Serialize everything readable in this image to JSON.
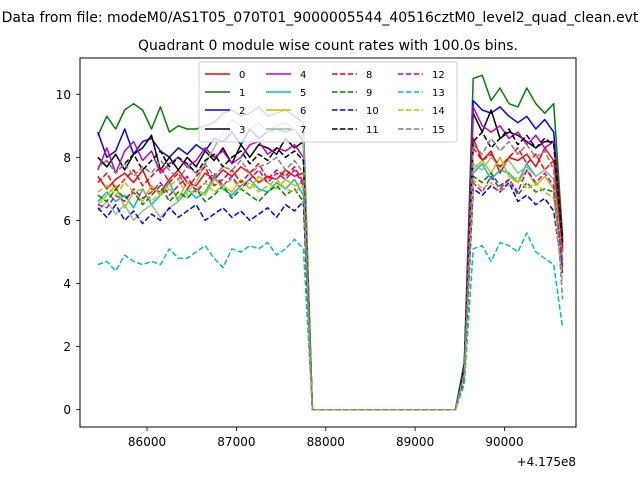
{
  "figure": {
    "suptitle": "Data from file: modeM0/AS1T05_070T01_9000005544_40516cztM0_level2_quad_clean.evt",
    "title": "Quadrant 0 module wise count rates with 100.0s bins.",
    "offset_text": "+4.175e8"
  },
  "chart_data": {
    "type": "line",
    "title": "Quadrant 0 module wise count rates with 100.0s bins.",
    "xlabel": "",
    "ylabel": "",
    "x_offset": 417500000,
    "xlim": [
      85250,
      90800
    ],
    "ylim": [
      -0.55,
      11.15
    ],
    "xticks": [
      86000,
      87000,
      88000,
      89000,
      90000
    ],
    "xtick_labels": [
      "86000",
      "87000",
      "88000",
      "89000",
      "90000"
    ],
    "yticks": [
      0,
      2,
      4,
      6,
      8,
      10
    ],
    "ytick_labels": [
      "0",
      "2",
      "4",
      "6",
      "8",
      "10"
    ],
    "grid": false,
    "legend": {
      "placement": "upper center",
      "columns": 4
    },
    "x": [
      85450,
      85550,
      85650,
      85750,
      85850,
      85950,
      86050,
      86150,
      86250,
      86350,
      86450,
      86550,
      86650,
      86750,
      86850,
      86950,
      87050,
      87150,
      87250,
      87350,
      87450,
      87550,
      87650,
      87750,
      87850,
      89450,
      89550,
      89650,
      89750,
      89850,
      89950,
      90050,
      90150,
      90250,
      90350,
      90450,
      90550,
      90650
    ],
    "series": [
      {
        "name": "0",
        "color": "#ff0000",
        "dash": "solid",
        "values": [
          7.4,
          7.0,
          7.3,
          7.5,
          7.2,
          7.6,
          7.0,
          6.9,
          7.3,
          7.6,
          7.2,
          7.1,
          7.5,
          7.3,
          7.6,
          7.4,
          7.7,
          7.5,
          7.2,
          7.4,
          7.3,
          7.6,
          7.4,
          7.5,
          0,
          0,
          1.2,
          8.6,
          7.9,
          8.2,
          7.5,
          8.0,
          7.9,
          8.1,
          7.7,
          8.3,
          7.9,
          5.0
        ]
      },
      {
        "name": "1",
        "color": "#008000",
        "dash": "solid",
        "values": [
          8.7,
          9.3,
          8.9,
          9.5,
          9.7,
          9.5,
          8.9,
          9.6,
          8.8,
          9.0,
          8.9,
          8.9,
          9.0,
          9.1,
          9.4,
          9.5,
          9.3,
          9.4,
          9.6,
          9.3,
          9.4,
          9.5,
          9.3,
          9.1,
          0,
          0,
          1.5,
          10.5,
          10.6,
          9.8,
          10.2,
          9.7,
          9.6,
          10.2,
          9.7,
          9.4,
          9.7,
          5.5
        ]
      },
      {
        "name": "2",
        "color": "#0000ff",
        "dash": "solid",
        "values": [
          8.8,
          8.0,
          8.2,
          8.9,
          8.1,
          8.5,
          8.6,
          8.2,
          8.0,
          8.3,
          8.1,
          8.4,
          8.2,
          8.6,
          8.5,
          8.8,
          8.4,
          8.9,
          8.6,
          8.8,
          8.9,
          8.8,
          8.9,
          8.5,
          0,
          0,
          1.4,
          9.8,
          9.5,
          9.4,
          9.6,
          9.3,
          9.1,
          9.3,
          8.9,
          9.2,
          8.8,
          5.2
        ]
      },
      {
        "name": "3",
        "color": "#000000",
        "dash": "solid",
        "values": [
          8.0,
          7.7,
          8.1,
          7.6,
          8.1,
          8.3,
          8.7,
          7.6,
          8.0,
          7.6,
          8.0,
          7.7,
          8.2,
          7.9,
          8.3,
          7.8,
          8.4,
          8.0,
          8.4,
          8.3,
          8.1,
          8.6,
          8.3,
          8.5,
          0,
          0,
          1.3,
          9.4,
          8.8,
          9.5,
          8.6,
          8.8,
          8.7,
          8.5,
          8.3,
          8.5,
          8.5,
          5.4
        ]
      },
      {
        "name": "4",
        "color": "#bf00bf",
        "dash": "solid",
        "values": [
          7.6,
          8.3,
          7.5,
          8.2,
          8.5,
          7.9,
          8.2,
          7.5,
          7.8,
          8.0,
          7.7,
          7.9,
          8.3,
          8.0,
          8.2,
          7.8,
          8.0,
          8.4,
          8.5,
          8.1,
          8.3,
          8.2,
          8.4,
          8.0,
          0,
          0,
          1.3,
          9.6,
          9.0,
          8.8,
          9.0,
          8.6,
          8.8,
          8.4,
          8.7,
          8.3,
          8.5,
          5.3
        ]
      },
      {
        "name": "5",
        "color": "#00bfbf",
        "dash": "solid",
        "values": [
          6.6,
          6.9,
          6.6,
          6.8,
          6.4,
          7.0,
          6.5,
          6.8,
          7.2,
          6.6,
          7.0,
          6.7,
          6.9,
          7.4,
          7.0,
          6.8,
          7.1,
          7.3,
          7.0,
          6.9,
          7.2,
          7.0,
          7.3,
          6.8,
          0,
          0,
          1.1,
          7.5,
          7.8,
          7.3,
          7.6,
          7.5,
          7.2,
          7.8,
          7.4,
          7.6,
          7.3,
          4.6
        ]
      },
      {
        "name": "6",
        "color": "#bfbf00",
        "dash": "solid",
        "values": [
          6.5,
          6.8,
          7.1,
          6.4,
          6.9,
          6.6,
          7.1,
          6.8,
          7.0,
          6.7,
          7.2,
          7.0,
          6.8,
          7.3,
          7.1,
          6.9,
          7.3,
          7.0,
          7.4,
          7.2,
          7.0,
          7.3,
          7.1,
          7.2,
          0,
          0,
          1.1,
          7.6,
          7.9,
          7.5,
          8.0,
          7.4,
          7.2,
          7.6,
          7.1,
          7.4,
          7.0,
          4.7
        ]
      },
      {
        "name": "7",
        "color": "#8fbf8f",
        "dash": "solid",
        "values": [
          6.3,
          6.6,
          6.2,
          6.5,
          6.0,
          6.3,
          6.5,
          6.1,
          6.4,
          6.6,
          6.9,
          7.2,
          7.8,
          8.3,
          8.8,
          9.2,
          9.0,
          8.9,
          9.1,
          8.8,
          9.0,
          9.1,
          8.9,
          8.6,
          0,
          0,
          1.0,
          7.8,
          7.6,
          8.0,
          7.7,
          7.9,
          7.5,
          7.7,
          7.4,
          7.6,
          7.3,
          4.8
        ]
      },
      {
        "name": "8",
        "color": "#ff0000",
        "dash": "dashed",
        "values": [
          7.2,
          7.5,
          7.0,
          7.3,
          7.6,
          7.1,
          7.4,
          7.7,
          7.2,
          7.5,
          7.0,
          7.4,
          7.7,
          7.1,
          7.3,
          7.6,
          7.2,
          7.5,
          7.8,
          7.3,
          7.6,
          7.4,
          7.7,
          7.2,
          0,
          0,
          1.2,
          8.3,
          7.9,
          8.1,
          7.7,
          8.0,
          8.3,
          7.8,
          8.1,
          7.6,
          7.9,
          5.1
        ]
      },
      {
        "name": "9",
        "color": "#008000",
        "dash": "dashed",
        "values": [
          6.8,
          6.6,
          7.0,
          6.7,
          6.9,
          6.5,
          6.8,
          7.1,
          6.6,
          6.9,
          6.7,
          7.0,
          6.6,
          6.8,
          7.1,
          6.7,
          7.0,
          6.8,
          6.6,
          6.9,
          7.1,
          6.8,
          7.0,
          6.6,
          0,
          0,
          1.1,
          7.4,
          7.2,
          7.5,
          7.1,
          7.3,
          6.8,
          7.2,
          6.9,
          7.0,
          6.9,
          4.5
        ]
      },
      {
        "name": "10",
        "color": "#0000ff",
        "dash": "dashed",
        "values": [
          6.4,
          6.1,
          6.5,
          6.0,
          6.3,
          5.9,
          6.2,
          6.0,
          6.4,
          6.1,
          6.3,
          6.5,
          6.0,
          6.2,
          6.4,
          6.1,
          6.3,
          6.0,
          6.2,
          6.4,
          6.1,
          6.5,
          6.3,
          6.6,
          0,
          0,
          1.0,
          7.0,
          6.8,
          7.1,
          6.9,
          7.2,
          6.6,
          6.8,
          6.5,
          6.7,
          6.3,
          4.3
        ]
      },
      {
        "name": "11",
        "color": "#000000",
        "dash": "dashed",
        "values": [
          7.7,
          7.9,
          7.5,
          7.8,
          8.1,
          7.6,
          7.9,
          8.2,
          7.7,
          8.0,
          7.8,
          7.5,
          7.9,
          8.1,
          7.7,
          8.0,
          8.2,
          7.8,
          8.1,
          7.9,
          8.3,
          8.0,
          8.2,
          7.9,
          0,
          0,
          1.3,
          8.5,
          8.8,
          8.3,
          8.6,
          8.9,
          8.4,
          8.7,
          8.3,
          8.6,
          8.4,
          5.3
        ]
      },
      {
        "name": "12",
        "color": "#bf00bf",
        "dash": "dashed",
        "values": [
          6.5,
          6.4,
          6.8,
          6.6,
          7.0,
          6.7,
          6.9,
          7.2,
          6.8,
          7.1,
          7.4,
          6.9,
          7.2,
          7.5,
          7.1,
          7.4,
          7.0,
          7.3,
          7.6,
          7.2,
          7.5,
          7.3,
          7.6,
          7.1,
          0,
          0,
          1.1,
          7.2,
          6.9,
          7.4,
          7.0,
          7.3,
          6.9,
          7.6,
          7.2,
          7.5,
          7.1,
          4.6
        ]
      },
      {
        "name": "13",
        "color": "#00bfbf",
        "dash": "dashed",
        "values": [
          4.6,
          4.7,
          4.4,
          4.9,
          4.7,
          4.6,
          4.7,
          4.6,
          5.1,
          4.8,
          4.8,
          5.0,
          5.2,
          4.8,
          4.5,
          5.1,
          5.0,
          5.2,
          5.1,
          5.3,
          4.9,
          5.1,
          5.4,
          5.1,
          0,
          0,
          0.8,
          5.1,
          5.2,
          4.7,
          5.3,
          5.2,
          5.0,
          5.6,
          5.0,
          4.8,
          4.6,
          2.6
        ]
      },
      {
        "name": "14",
        "color": "#bfbf00",
        "dash": "dashed",
        "values": [
          6.9,
          7.1,
          6.8,
          7.2,
          6.9,
          7.0,
          6.6,
          6.9,
          7.1,
          7.3,
          6.8,
          7.0,
          7.2,
          6.9,
          7.1,
          7.3,
          7.0,
          7.2,
          6.9,
          7.1,
          7.3,
          7.0,
          6.9,
          7.1,
          0,
          0,
          1.1,
          7.3,
          7.0,
          7.2,
          6.9,
          7.1,
          7.4,
          7.0,
          7.2,
          6.9,
          6.7,
          4.0
        ]
      },
      {
        "name": "15",
        "color": "#808080",
        "dash": "dashed",
        "values": [
          7.7,
          7.9,
          7.5,
          7.8,
          7.4,
          7.7,
          7.5,
          7.9,
          7.6,
          7.3,
          7.7,
          7.5,
          7.8,
          7.4,
          7.7,
          7.6,
          7.9,
          7.5,
          7.7,
          7.8,
          8.0,
          7.6,
          7.9,
          7.5,
          0,
          0,
          1.2,
          8.4,
          8.1,
          8.6,
          8.2,
          8.5,
          8.1,
          8.4,
          8.0,
          8.2,
          7.6,
          3.5
        ]
      }
    ]
  }
}
